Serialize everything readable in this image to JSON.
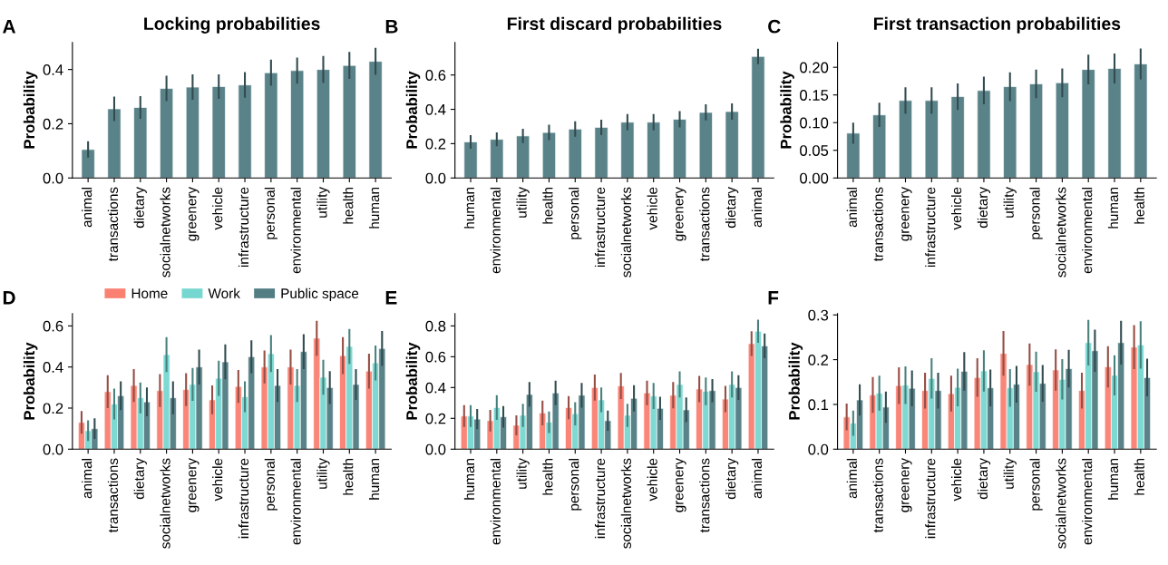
{
  "chart_data": [
    {
      "type": "bar",
      "title": "Locking probabilities",
      "ylabel": "Probability",
      "annotations": [
        "A"
      ],
      "categories": [
        "animal",
        "transactions",
        "dietary",
        "socialnetworks",
        "greenery",
        "vehicle",
        "infrastructure",
        "personal",
        "environmental",
        "utility",
        "health",
        "human"
      ],
      "values": [
        0.105,
        0.255,
        0.26,
        0.33,
        0.335,
        0.337,
        0.343,
        0.388,
        0.396,
        0.4,
        0.415,
        0.43
      ],
      "errors": [
        0.03,
        0.045,
        0.042,
        0.047,
        0.047,
        0.045,
        0.047,
        0.048,
        0.048,
        0.05,
        0.05,
        0.05
      ],
      "color": "#527d83",
      "ylim": [
        0,
        0.5
      ],
      "yticks": [
        {
          "value": 0,
          "label": "0.0"
        },
        0.2,
        0.4
      ],
      "grid": false,
      "legend": false
    },
    {
      "type": "bar",
      "title": "First discard probabilities",
      "ylabel": "Probability",
      "annotations": [
        "B"
      ],
      "categories": [
        "human",
        "environmental",
        "utility",
        "health",
        "personal",
        "infrastructure",
        "socialnetworks",
        "vehicle",
        "greenery",
        "transactions",
        "dietary",
        "animal"
      ],
      "values": [
        0.21,
        0.225,
        0.245,
        0.265,
        0.285,
        0.295,
        0.325,
        0.325,
        0.342,
        0.382,
        0.387,
        0.708
      ],
      "errors": [
        0.04,
        0.04,
        0.042,
        0.045,
        0.045,
        0.045,
        0.047,
        0.047,
        0.047,
        0.047,
        0.047,
        0.045
      ],
      "color": "#527d83",
      "ylim": [
        0,
        0.79
      ],
      "yticks": [
        {
          "value": 0,
          "label": "0.0"
        },
        0.2,
        0.4,
        0.6
      ],
      "grid": false,
      "legend": false
    },
    {
      "type": "bar",
      "title": "First transaction probabilities",
      "ylabel": "Probability",
      "annotations": [
        "C"
      ],
      "categories": [
        "animal",
        "transactions",
        "greenery",
        "infrastructure",
        "vehicle",
        "dietary",
        "utility",
        "personal",
        "socialnetworks",
        "environmental",
        "human",
        "health"
      ],
      "values": [
        0.081,
        0.114,
        0.14,
        0.14,
        0.147,
        0.158,
        0.165,
        0.17,
        0.172,
        0.196,
        0.198,
        0.206
      ],
      "errors": [
        0.019,
        0.022,
        0.024,
        0.024,
        0.024,
        0.025,
        0.026,
        0.026,
        0.026,
        0.027,
        0.027,
        0.028
      ],
      "color": "#527d83",
      "ylim": [
        0,
        0.245
      ],
      "yticks": [
        {
          "value": 0,
          "label": "0.00"
        },
        {
          "value": 0.05,
          "label": "0.05"
        },
        {
          "value": 0.1,
          "label": "0.10"
        },
        {
          "value": 0.15,
          "label": "0.15"
        },
        {
          "value": 0.2,
          "label": "0.20"
        }
      ],
      "grid": false,
      "legend": false
    },
    {
      "type": "bar",
      "ylabel": "Probability",
      "annotations": [
        "D"
      ],
      "categories": [
        "animal",
        "transactions",
        "dietary",
        "socialnetworks",
        "greenery",
        "vehicle",
        "infrastructure",
        "personal",
        "environmental",
        "utility",
        "health",
        "human"
      ],
      "series": [
        {
          "name": "Home",
          "color": "#fa8072",
          "values": [
            0.13,
            0.28,
            0.31,
            0.285,
            0.29,
            0.24,
            0.305,
            0.4,
            0.4,
            0.54,
            0.455,
            0.38
          ],
          "errors": [
            0.055,
            0.08,
            0.08,
            0.08,
            0.08,
            0.07,
            0.08,
            0.08,
            0.085,
            0.085,
            0.09,
            0.085
          ]
        },
        {
          "name": "Work",
          "color": "#76d7d0",
          "values": [
            0.09,
            0.22,
            0.25,
            0.46,
            0.315,
            0.345,
            0.255,
            0.465,
            0.31,
            0.35,
            0.5,
            0.42
          ],
          "errors": [
            0.05,
            0.075,
            0.075,
            0.085,
            0.08,
            0.085,
            0.075,
            0.09,
            0.08,
            0.085,
            0.085,
            0.085
          ]
        },
        {
          "name": "Public space",
          "color": "#527d83",
          "values": [
            0.1,
            0.26,
            0.23,
            0.25,
            0.4,
            0.425,
            0.45,
            0.31,
            0.475,
            0.3,
            0.315,
            0.49
          ],
          "errors": [
            0.05,
            0.07,
            0.07,
            0.08,
            0.085,
            0.085,
            0.08,
            0.08,
            0.085,
            0.08,
            0.075,
            0.085
          ]
        }
      ],
      "ylim": [
        0,
        0.66
      ],
      "yticks": [
        {
          "value": 0,
          "label": "0.0"
        },
        0.2,
        0.4,
        0.6
      ],
      "grid": false,
      "legend": "top"
    },
    {
      "type": "bar",
      "ylabel": "Probability",
      "annotations": [
        "E"
      ],
      "categories": [
        "human",
        "environmental",
        "utility",
        "health",
        "personal",
        "infrastructure",
        "socialnetworks",
        "vehicle",
        "greenery",
        "transactions",
        "dietary",
        "animal"
      ],
      "series": [
        {
          "color": "#fa8072",
          "values": [
            0.215,
            0.185,
            0.155,
            0.235,
            0.27,
            0.4,
            0.41,
            0.365,
            0.35,
            0.39,
            0.325,
            0.685
          ],
          "errors": [
            0.07,
            0.07,
            0.065,
            0.08,
            0.075,
            0.085,
            0.085,
            0.08,
            0.085,
            0.085,
            0.085,
            0.08
          ]
        },
        {
          "color": "#76d7d0",
          "values": [
            0.215,
            0.27,
            0.22,
            0.175,
            0.23,
            0.32,
            0.22,
            0.345,
            0.42,
            0.375,
            0.42,
            0.765
          ],
          "errors": [
            0.07,
            0.08,
            0.075,
            0.07,
            0.075,
            0.08,
            0.075,
            0.085,
            0.085,
            0.09,
            0.085,
            0.075
          ]
        },
        {
          "color": "#527d83",
          "values": [
            0.195,
            0.21,
            0.355,
            0.365,
            0.35,
            0.185,
            0.33,
            0.265,
            0.255,
            0.38,
            0.4,
            0.67
          ],
          "errors": [
            0.065,
            0.07,
            0.08,
            0.08,
            0.08,
            0.065,
            0.085,
            0.075,
            0.08,
            0.075,
            0.08,
            0.08
          ]
        }
      ],
      "ylim": [
        0,
        0.88
      ],
      "yticks": [
        {
          "value": 0,
          "label": "0.0"
        },
        0.2,
        0.4,
        0.6,
        0.8
      ],
      "grid": false,
      "legend": false
    },
    {
      "type": "bar",
      "ylabel": "Probability",
      "annotations": [
        "F"
      ],
      "categories": [
        "animal",
        "transactions",
        "greenery",
        "infrastructure",
        "vehicle",
        "dietary",
        "utility",
        "personal",
        "socialnetworks",
        "environmental",
        "human",
        "health"
      ],
      "series": [
        {
          "color": "#fa8072",
          "values": [
            0.072,
            0.121,
            0.142,
            0.131,
            0.124,
            0.16,
            0.214,
            0.189,
            0.177,
            0.131,
            0.184,
            0.228
          ],
          "errors": [
            0.03,
            0.04,
            0.041,
            0.04,
            0.04,
            0.043,
            0.05,
            0.047,
            0.046,
            0.04,
            0.046,
            0.049
          ]
        },
        {
          "color": "#76d7d0",
          "values": [
            0.058,
            0.125,
            0.143,
            0.158,
            0.138,
            0.175,
            0.137,
            0.173,
            0.156,
            0.238,
            0.165,
            0.233
          ],
          "errors": [
            0.028,
            0.039,
            0.042,
            0.045,
            0.042,
            0.046,
            0.042,
            0.045,
            0.045,
            0.051,
            0.045,
            0.053
          ]
        },
        {
          "color": "#527d83",
          "values": [
            0.11,
            0.094,
            0.136,
            0.131,
            0.174,
            0.137,
            0.145,
            0.147,
            0.18,
            0.22,
            0.238,
            0.16
          ],
          "errors": [
            0.035,
            0.035,
            0.04,
            0.04,
            0.043,
            0.041,
            0.041,
            0.041,
            0.042,
            0.047,
            0.049,
            0.042
          ]
        }
      ],
      "ylim": [
        0,
        0.303
      ],
      "yticks": [
        {
          "value": 0,
          "label": "0.0"
        },
        0.1,
        0.2,
        0.3
      ],
      "grid": false,
      "legend": false
    }
  ]
}
